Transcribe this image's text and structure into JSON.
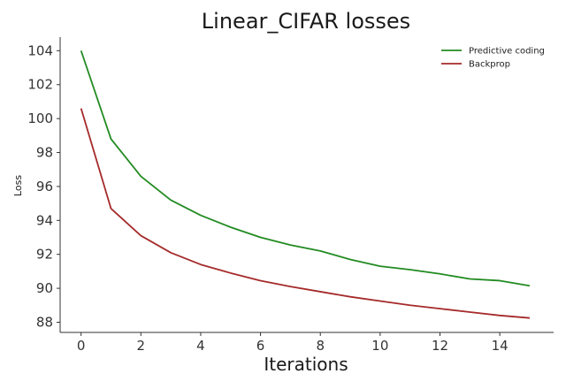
{
  "chart_data": {
    "type": "line",
    "title": "Linear_CIFAR losses",
    "xlabel": "Iterations",
    "ylabel": "Loss",
    "xlim": [
      -0.7,
      15.8
    ],
    "ylim": [
      87.4,
      104.8
    ],
    "xticks": [
      0,
      2,
      4,
      6,
      8,
      10,
      12,
      14
    ],
    "yticks": [
      88,
      90,
      92,
      94,
      96,
      98,
      100,
      102,
      104
    ],
    "grid": false,
    "legend": "top-right",
    "x": [
      0,
      1,
      2,
      3,
      4,
      5,
      6,
      7,
      8,
      9,
      10,
      11,
      12,
      13,
      14,
      15
    ],
    "series": [
      {
        "name": "Predictive coding",
        "color": "#228b22",
        "values": [
          104.0,
          98.8,
          96.6,
          95.2,
          94.3,
          93.6,
          93.0,
          92.55,
          92.2,
          91.7,
          91.3,
          91.1,
          90.85,
          90.55,
          90.45,
          90.15
        ]
      },
      {
        "name": "Backprop",
        "color": "#a52a2a",
        "values": [
          100.6,
          94.7,
          93.1,
          92.1,
          91.4,
          90.9,
          90.45,
          90.1,
          89.8,
          89.5,
          89.25,
          89.0,
          88.8,
          88.6,
          88.4,
          88.25
        ]
      }
    ]
  }
}
